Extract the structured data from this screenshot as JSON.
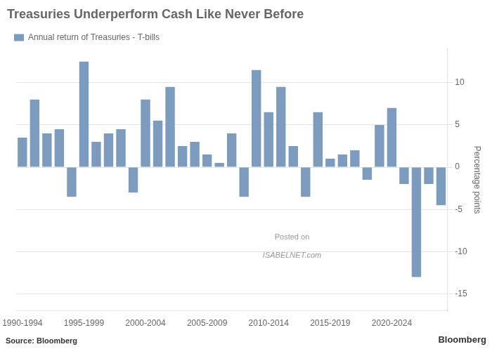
{
  "chart_data": {
    "type": "bar",
    "title": "Treasuries Underperform Cash Like Never Before",
    "ylabel": "Percentage points",
    "annotations": [
      "Source: Bloomberg",
      "Bloomberg",
      "Posted on",
      "ISABELNET.com"
    ],
    "categories": [
      "1990-1994",
      null,
      null,
      null,
      null,
      "1995-1999",
      null,
      null,
      null,
      null,
      "2000-2004",
      null,
      null,
      null,
      null,
      "2005-2009",
      null,
      null,
      null,
      null,
      "2010-2014",
      null,
      null,
      null,
      null,
      "2015-2019",
      null,
      null,
      null,
      null,
      "2020-2024",
      null,
      null,
      null,
      null
    ],
    "series": [
      {
        "name": "Annual return of Treasuries - T-bills",
        "color": "#7b9cbf",
        "values": [
          3.5,
          8.0,
          4.0,
          4.5,
          -3.5,
          12.5,
          3.0,
          4.0,
          4.5,
          -3.0,
          8.0,
          5.5,
          9.5,
          2.5,
          3.0,
          1.5,
          0.5,
          4.0,
          -3.5,
          11.5,
          6.5,
          9.5,
          2.5,
          -3.5,
          6.5,
          1.0,
          1.5,
          2.0,
          -1.5,
          5.0,
          7.0,
          -2.0,
          -13.0,
          -2.0,
          -4.5
        ]
      }
    ],
    "ylim": [
      -17,
      14
    ],
    "yticks": [
      -15,
      -10,
      -5,
      0,
      5,
      10
    ],
    "grid": true,
    "legend": "upper left"
  }
}
